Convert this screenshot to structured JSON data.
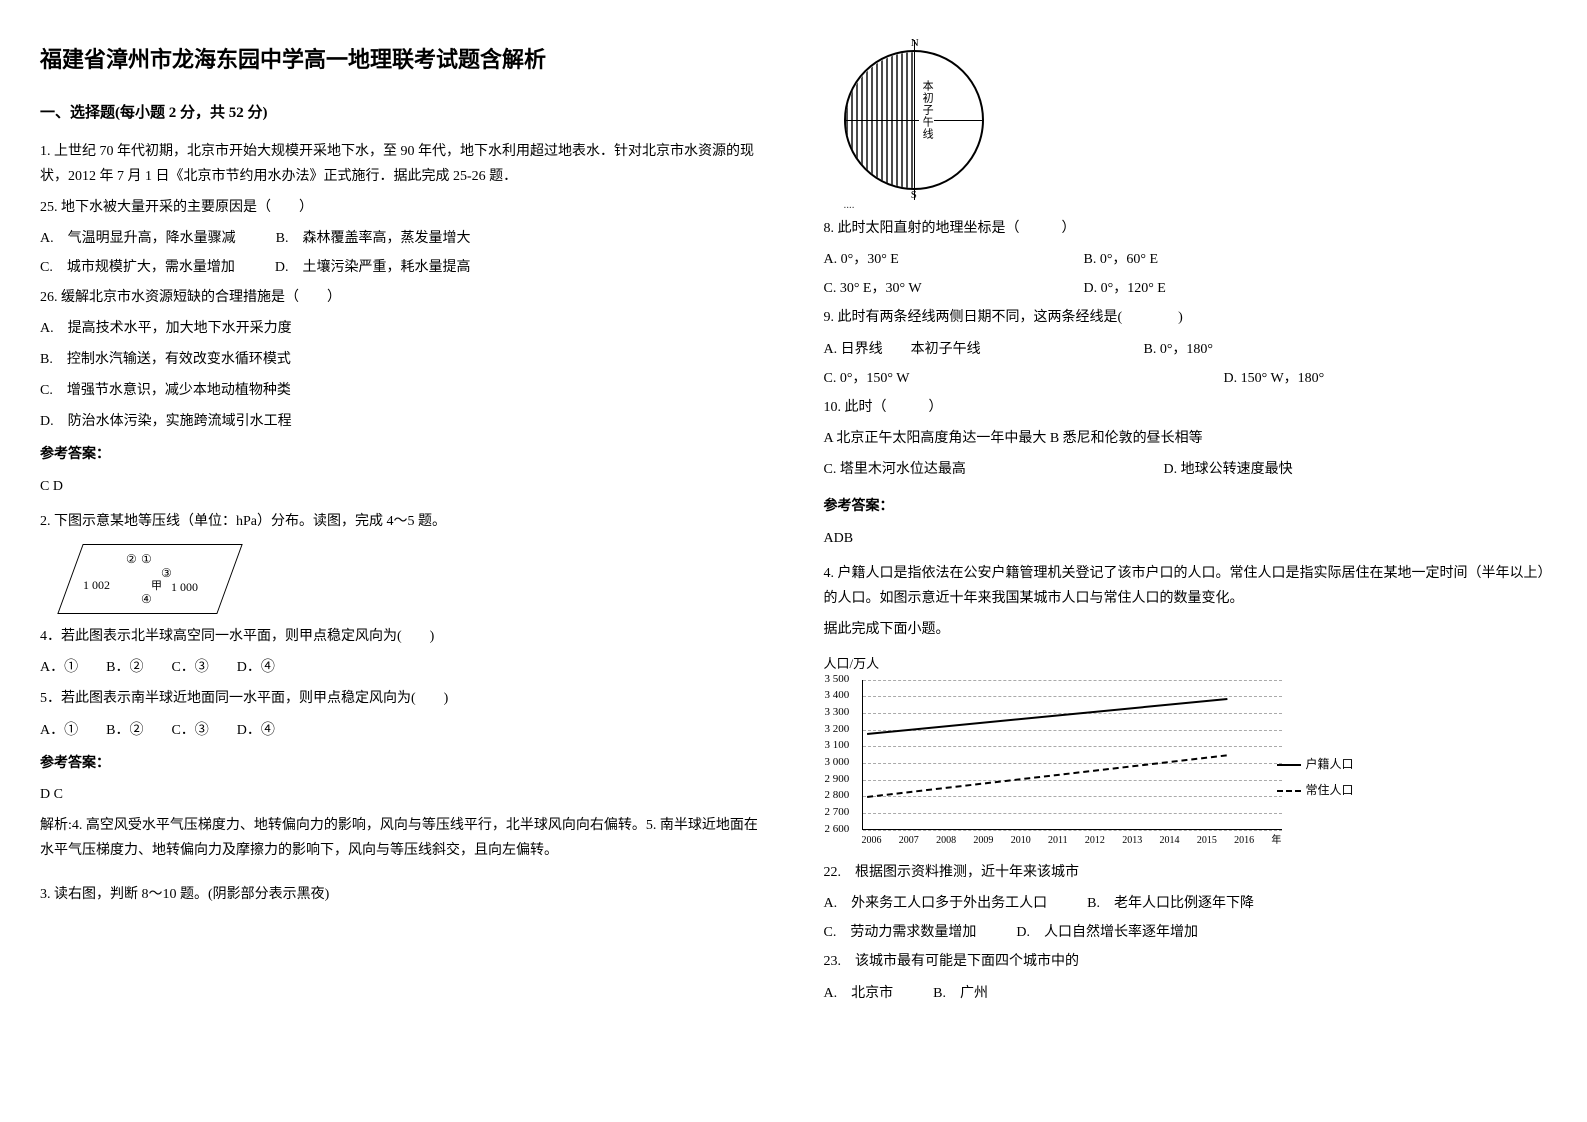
{
  "title": "福建省漳州市龙海东园中学高一地理联考试题含解析",
  "section1_head": "一、选择题(每小题 2 分，共 52 分)",
  "q1": {
    "stem": "1. 上世纪 70 年代初期，北京市开始大规模开采地下水，至 90 年代，地下水利用超过地表水．针对北京市水资源的现状，2012 年 7 月 1 日《北京市节约用水办法》正式施行．据此完成 25-26 题．",
    "q25": "25. 地下水被大量开采的主要原因是（　　）",
    "q25_opts": {
      "a": "A.　气温明显升高，降水量骤减",
      "b": "B.　森林覆盖率高，蒸发量增大",
      "c": "C.　城市规模扩大，需水量增加",
      "d": "D.　土壤污染严重，耗水量提高"
    },
    "q26": "26. 缓解北京市水资源短缺的合理措施是（　　）",
    "q26_opts": {
      "a": "A.　提高技术水平，加大地下水开采力度",
      "b": "B.　控制水汽输送，有效改变水循环模式",
      "c": "C.　增强节水意识，减少本地动植物种类",
      "d": "D.　防治水体污染，实施跨流域引水工程"
    },
    "ans_head": "参考答案：",
    "ans": "C D"
  },
  "q2": {
    "stem": "2. 下图示意某地等压线（单位：hPa）分布。读图，完成 4～5 题。",
    "fig": {
      "v1002": "1 002",
      "v1000": "1 000",
      "m1": "①",
      "m2": "②",
      "m3": "③",
      "m4": "④",
      "jia": "甲"
    },
    "q4": "4．若此图表示北半球高空同一水平面，则甲点稳定风向为(　　)",
    "q4_opts": "A．①　　B．②　　C．③　　D．④",
    "q5": "5．若此图表示南半球近地面同一水平面，则甲点稳定风向为(　　)",
    "q5_opts": "A．①　　B．②　　C．③　　D．④",
    "ans_head": "参考答案：",
    "ans": "D C",
    "explain": "解析:4. 高空风受水平气压梯度力、地转偏向力的影响，风向与等压线平行，北半球风向向右偏转。5. 南半球近地面在水平气压梯度力、地转偏向力及摩擦力的影响下，风向与等压线斜交，且向左偏转。"
  },
  "q3": {
    "stem": "3. 读右图，判断 8～10 题。(阴影部分表示黑夜)",
    "globe": {
      "n": "N",
      "s": "S",
      "label": "本初子午线"
    },
    "q8": "8. 此时太阳直射的地理坐标是（　　　）",
    "q8_opts": {
      "a": "A. 0°，30° E",
      "b": "B. 0°，60° E",
      "c": "C. 30° E，30° W",
      "d": "D. 0°，120° E"
    },
    "q9": "9. 此时有两条经线两侧日期不同，这两条经线是(　　　　)",
    "q9_opts": {
      "a": "A. 日界线　　本初子午线",
      "b": "B. 0°，180°",
      "c": "C. 0°，150° W",
      "d": "D. 150° W，180°"
    },
    "q10": "10. 此时（　　　）",
    "q10_opts": {
      "a": "A 北京正午太阳高度角达一年中最大 B 悉尼和伦敦的昼长相等",
      "c": "C. 塔里木河水位达最高",
      "d": "D. 地球公转速度最快"
    },
    "ans_head": "参考答案：",
    "ans": "ADB"
  },
  "q4q": {
    "stem": "4. 户籍人口是指依法在公安户籍管理机关登记了该市户口的人口。常住人口是指实际居住在某地一定时间（半年以上）的人口。如图示意近十年来我国某城市人口与常住人口的数量变化。",
    "stem2": "据此完成下面小题。",
    "chart": {
      "y_title": "人口/万人",
      "y_ticks": [
        "2 600",
        "2 700",
        "2 800",
        "2 900",
        "3 000",
        "3 100",
        "3 200",
        "3 300",
        "3 400",
        "3 500"
      ],
      "x_ticks": [
        "2006",
        "2007",
        "2008",
        "2009",
        "2010",
        "2011",
        "2012",
        "2013",
        "2014",
        "2015",
        "2016",
        "年"
      ],
      "legend1": "户籍人口",
      "legend2": "常住人口",
      "series_huji": {
        "start_y": 3180,
        "end_y": 3390
      },
      "series_changzhu": {
        "start_y": 2800,
        "end_y": 3050
      },
      "y_min": 2600,
      "y_max": 3500
    },
    "q22": "22.　根据图示资料推测，近十年来该城市",
    "q22_opts": {
      "a": "A.　外来务工人口多于外出务工人口",
      "b": "B.　老年人口比例逐年下降",
      "c": "C.　劳动力需求数量增加",
      "d": "D.　人口自然增长率逐年增加"
    },
    "q23": "23.　该城市最有可能是下面四个城市中的",
    "q23_opts": {
      "a": "A.　北京市",
      "b": "B.　广州"
    }
  }
}
